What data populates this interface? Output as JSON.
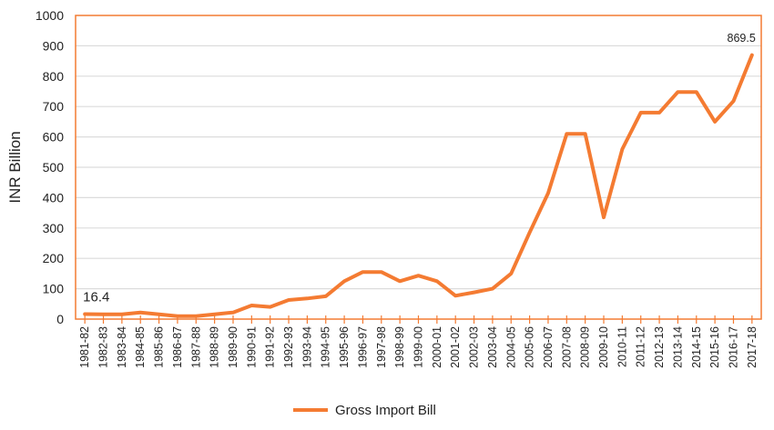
{
  "chart_data": {
    "type": "line",
    "title": "",
    "xlabel": "",
    "ylabel": "INR Billion",
    "ylim": [
      0,
      1000
    ],
    "yticks": [
      0,
      100,
      200,
      300,
      400,
      500,
      600,
      700,
      800,
      900,
      1000
    ],
    "grid": true,
    "legend_position": "bottom",
    "color": "#F47B32",
    "categories": [
      "1981-82",
      "1982-83",
      "1983-84",
      "1984-85",
      "1985-86",
      "1986-87",
      "1987-88",
      "1988-89",
      "1989-90",
      "1990-91",
      "1991-92",
      "1992-93",
      "1993-94",
      "1994-95",
      "1995-96",
      "1996-97",
      "1997-98",
      "1998-99",
      "1999-00",
      "2000-01",
      "2001-02",
      "2002-03",
      "2003-04",
      "2004-05",
      "2005-06",
      "2006-07",
      "2007-08",
      "2008-09",
      "2009-10",
      "2010-11",
      "2011-12",
      "2012-13",
      "2013-14",
      "2014-15",
      "2015-16",
      "2016-17",
      "2017-18"
    ],
    "series": [
      {
        "name": "Gross Import Bill",
        "values": [
          16.4,
          16,
          16,
          22,
          16,
          10,
          10,
          16,
          22,
          45,
          40,
          63,
          68,
          75,
          125,
          155,
          155,
          125,
          143,
          125,
          77,
          88,
          100,
          150,
          285,
          415,
          610,
          610,
          335,
          560,
          680,
          680,
          748,
          748,
          650,
          718,
          869.5
        ]
      }
    ],
    "annotations": [
      {
        "index": 0,
        "text": "16.4"
      },
      {
        "index": 36,
        "text": "869.5"
      }
    ]
  }
}
